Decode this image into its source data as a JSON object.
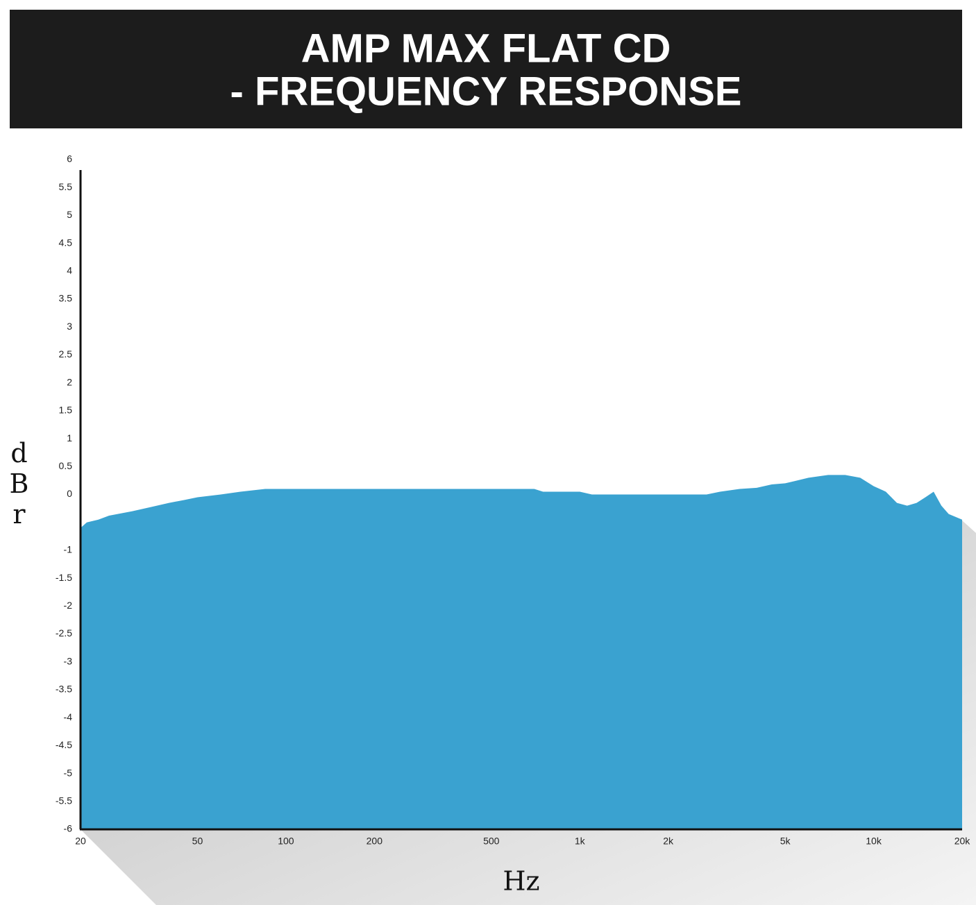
{
  "chart_data": {
    "type": "area",
    "title": [
      "AMP MAX FLAT CD",
      "- FREQUENCY RESPONSE"
    ],
    "ylabel": "dBr",
    "xlabel": "Hz",
    "x": [
      20,
      21,
      23,
      25,
      30,
      35,
      40,
      45,
      50,
      60,
      70,
      85,
      200,
      500,
      700,
      750,
      1000,
      1100,
      2700,
      3000,
      3500,
      4000,
      4500,
      5000,
      6000,
      7000,
      8000,
      9000,
      10000,
      11000,
      12000,
      13000,
      14000,
      15000,
      16000,
      17000,
      18000,
      20000
    ],
    "values": [
      -0.6,
      -0.5,
      -0.45,
      -0.38,
      -0.3,
      -0.22,
      -0.15,
      -0.1,
      -0.05,
      0,
      0.05,
      0.1,
      0.1,
      0.1,
      0.1,
      0.05,
      0.05,
      0,
      0,
      0.05,
      0.1,
      0.12,
      0.18,
      0.2,
      0.3,
      0.35,
      0.35,
      0.3,
      0.15,
      0.05,
      -0.15,
      -0.2,
      -0.15,
      -0.05,
      0.05,
      -0.2,
      -0.35,
      -0.45
    ],
    "color": "#3aa2d0",
    "xlog": true,
    "xlim": [
      20,
      20000
    ],
    "xticks": [
      20,
      50,
      100,
      200,
      500,
      {
        "value": 1000,
        "label": "1k"
      },
      {
        "value": 2000,
        "label": "2k"
      },
      {
        "value": 5000,
        "label": "5k"
      },
      {
        "value": 10000,
        "label": "10k"
      },
      {
        "value": 20000,
        "label": "20k"
      }
    ],
    "ylim": [
      -6,
      6
    ],
    "yticks": [
      6,
      5.5,
      5,
      4.5,
      4,
      3.5,
      3,
      2.5,
      2,
      1.5,
      1,
      0.5,
      0,
      -1,
      -1.5,
      -2,
      -2.5,
      -3,
      -3.5,
      -4,
      -4.5,
      -5,
      -5.5,
      -6
    ],
    "grid": false
  }
}
